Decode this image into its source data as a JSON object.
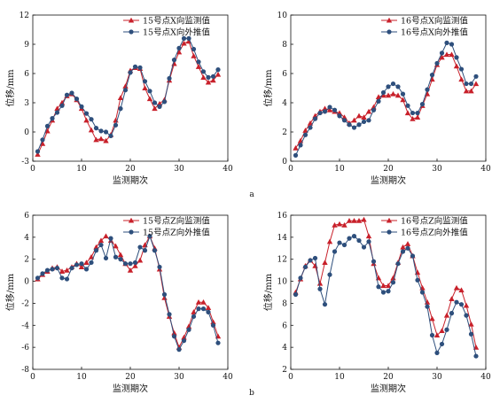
{
  "panel_labels": [
    "a",
    "b"
  ],
  "colors": {
    "series_observed": "#c8202a",
    "series_extrapolated": "#2e4f7c",
    "axis": "#111111"
  },
  "chart_data": [
    {
      "type": "line",
      "panel": "a-left",
      "title": "",
      "xlabel": "监测期次",
      "ylabel": "位移/mm",
      "xlim": [
        0,
        40
      ],
      "ylim": [
        -3,
        12
      ],
      "xticks": [
        0,
        10,
        20,
        30,
        40
      ],
      "yticks": [
        -3,
        0,
        3,
        6,
        9,
        12
      ],
      "legend_placement": "top-right",
      "grid": false,
      "x": [
        1,
        2,
        3,
        4,
        5,
        6,
        7,
        8,
        9,
        10,
        11,
        12,
        13,
        14,
        15,
        16,
        17,
        18,
        19,
        20,
        21,
        22,
        23,
        24,
        25,
        26,
        27,
        28,
        29,
        30,
        31,
        32,
        33,
        34,
        35,
        36,
        37,
        38
      ],
      "series": [
        {
          "name": "15号点X向监测值",
          "marker": "triangle",
          "values": [
            -2.3,
            -1.2,
            0.1,
            1.2,
            2.4,
            3.0,
            3.7,
            3.9,
            3.3,
            2.4,
            1.2,
            0.2,
            -0.8,
            -0.7,
            -0.9,
            -0.3,
            1.2,
            3.5,
            4.7,
            6.3,
            6.6,
            6.5,
            4.5,
            3.4,
            2.4,
            2.9,
            3.3,
            5.3,
            7.0,
            8.2,
            9.1,
            9.3,
            7.8,
            6.7,
            5.6,
            5.1,
            5.3,
            5.9
          ]
        },
        {
          "name": "15号点X向外推值",
          "marker": "circle",
          "values": [
            -2.0,
            -0.8,
            0.6,
            1.4,
            2.0,
            2.7,
            3.8,
            4.0,
            3.4,
            2.6,
            1.9,
            1.3,
            0.4,
            0.1,
            0.0,
            -0.4,
            0.7,
            2.4,
            4.3,
            6.1,
            6.7,
            6.6,
            5.2,
            4.2,
            3.0,
            2.6,
            3.1,
            5.5,
            7.4,
            8.6,
            9.6,
            9.6,
            8.5,
            7.2,
            6.2,
            5.6,
            5.7,
            6.4
          ]
        }
      ]
    },
    {
      "type": "line",
      "panel": "a-right",
      "title": "",
      "xlabel": "监测期次",
      "ylabel": "位移/mm",
      "xlim": [
        0,
        40
      ],
      "ylim": [
        0,
        10
      ],
      "xticks": [
        0,
        10,
        20,
        30,
        40
      ],
      "yticks": [
        0,
        2,
        4,
        6,
        8,
        10
      ],
      "legend_placement": "top-right",
      "grid": false,
      "x": [
        1,
        2,
        3,
        4,
        5,
        6,
        7,
        8,
        9,
        10,
        11,
        12,
        13,
        14,
        15,
        16,
        17,
        18,
        19,
        20,
        21,
        22,
        23,
        24,
        25,
        26,
        27,
        28,
        29,
        30,
        31,
        32,
        33,
        34,
        35,
        36,
        37,
        38
      ],
      "series": [
        {
          "name": "16号点X向监测值",
          "marker": "triangle",
          "values": [
            0.9,
            1.4,
            2.1,
            2.6,
            3.1,
            3.4,
            3.6,
            3.5,
            3.4,
            3.3,
            3.0,
            2.6,
            2.8,
            3.1,
            3.0,
            3.4,
            3.7,
            4.4,
            4.5,
            4.5,
            4.6,
            4.5,
            4.2,
            3.3,
            2.9,
            3.0,
            3.8,
            4.6,
            5.6,
            6.6,
            7.1,
            7.3,
            7.3,
            6.5,
            5.6,
            4.8,
            4.8,
            5.3
          ]
        },
        {
          "name": "16号点X向外推值",
          "marker": "circle",
          "values": [
            0.4,
            1.1,
            1.8,
            2.3,
            2.9,
            3.3,
            3.4,
            3.7,
            3.5,
            3.1,
            2.8,
            2.5,
            2.3,
            2.5,
            2.7,
            2.8,
            3.5,
            4.1,
            4.7,
            5.1,
            5.3,
            5.1,
            4.6,
            3.8,
            3.3,
            3.3,
            3.9,
            4.9,
            5.9,
            6.7,
            7.4,
            8.1,
            8.0,
            7.1,
            6.3,
            5.3,
            5.3,
            5.8
          ]
        }
      ]
    },
    {
      "type": "line",
      "panel": "b-left",
      "title": "",
      "xlabel": "监测期次",
      "ylabel": "位移/mm",
      "xlim": [
        0,
        40
      ],
      "ylim": [
        -8,
        6
      ],
      "xticks": [
        0,
        10,
        20,
        30,
        40
      ],
      "yticks": [
        -8,
        -6,
        -4,
        -2,
        0,
        2,
        4,
        6
      ],
      "legend_placement": "top-right",
      "grid": false,
      "x": [
        1,
        2,
        3,
        4,
        5,
        6,
        7,
        8,
        9,
        10,
        11,
        12,
        13,
        14,
        15,
        16,
        17,
        18,
        19,
        20,
        21,
        22,
        23,
        24,
        25,
        26,
        27,
        28,
        29,
        30,
        31,
        32,
        33,
        34,
        35,
        36,
        37,
        38
      ],
      "series": [
        {
          "name": "15号点Z向监测值",
          "marker": "triangle",
          "values": [
            0.2,
            0.6,
            0.9,
            1.2,
            1.3,
            0.9,
            1.0,
            1.3,
            1.6,
            1.3,
            1.7,
            2.2,
            3.1,
            3.7,
            4.1,
            3.7,
            3.2,
            2.4,
            1.6,
            1.0,
            1.4,
            1.9,
            3.3,
            4.1,
            3.0,
            1.1,
            -1.5,
            -3.2,
            -4.7,
            -6.0,
            -5.1,
            -4.1,
            -2.8,
            -1.9,
            -1.9,
            -2.4,
            -3.7,
            -5.0
          ]
        },
        {
          "name": "15号点Z向外推值",
          "marker": "circle",
          "values": [
            0.3,
            0.7,
            1.0,
            1.1,
            1.2,
            0.3,
            0.2,
            1.2,
            1.5,
            1.6,
            1.1,
            1.7,
            2.8,
            3.3,
            2.1,
            3.9,
            2.2,
            2.0,
            1.6,
            1.6,
            1.7,
            3.1,
            2.8,
            4.1,
            2.8,
            1.3,
            -1.2,
            -3.0,
            -5.0,
            -6.2,
            -5.4,
            -4.4,
            -3.2,
            -2.5,
            -2.5,
            -2.8,
            -4.0,
            -5.6
          ]
        }
      ]
    },
    {
      "type": "line",
      "panel": "b-right",
      "title": "",
      "xlabel": "监测期次",
      "ylabel": "位移/mm",
      "xlim": [
        0,
        40
      ],
      "ylim": [
        2,
        16
      ],
      "xticks": [
        0,
        10,
        20,
        30,
        40
      ],
      "yticks": [
        2,
        4,
        6,
        8,
        10,
        12,
        14,
        16
      ],
      "legend_placement": "top-right",
      "grid": false,
      "x": [
        1,
        2,
        3,
        4,
        5,
        6,
        7,
        8,
        9,
        10,
        11,
        12,
        13,
        14,
        15,
        16,
        17,
        18,
        19,
        20,
        21,
        22,
        23,
        24,
        25,
        26,
        27,
        28,
        29,
        30,
        31,
        32,
        33,
        34,
        35,
        36,
        37,
        38
      ],
      "series": [
        {
          "name": "16号点Z向监测值",
          "marker": "triangle",
          "values": [
            9.0,
            10.2,
            11.4,
            11.9,
            11.4,
            9.8,
            11.7,
            13.6,
            15.1,
            15.2,
            15.1,
            15.5,
            15.5,
            15.5,
            15.6,
            14.1,
            11.6,
            10.3,
            9.6,
            9.6,
            10.3,
            11.7,
            13.1,
            13.4,
            12.3,
            10.8,
            9.4,
            8.1,
            6.6,
            5.1,
            5.5,
            6.9,
            8.4,
            9.4,
            9.2,
            7.8,
            6.1,
            4.0
          ]
        },
        {
          "name": "16号点Z向外推值",
          "marker": "circle",
          "values": [
            8.8,
            10.3,
            11.3,
            11.9,
            12.1,
            9.3,
            7.9,
            10.6,
            12.7,
            13.5,
            13.3,
            13.9,
            14.1,
            13.7,
            13.1,
            13.6,
            11.8,
            9.5,
            9.0,
            9.1,
            9.9,
            11.6,
            12.7,
            13.0,
            12.3,
            10.1,
            9.0,
            7.7,
            5.1,
            3.5,
            4.3,
            5.6,
            7.1,
            8.1,
            7.9,
            6.9,
            5.2,
            3.2
          ]
        }
      ]
    }
  ]
}
